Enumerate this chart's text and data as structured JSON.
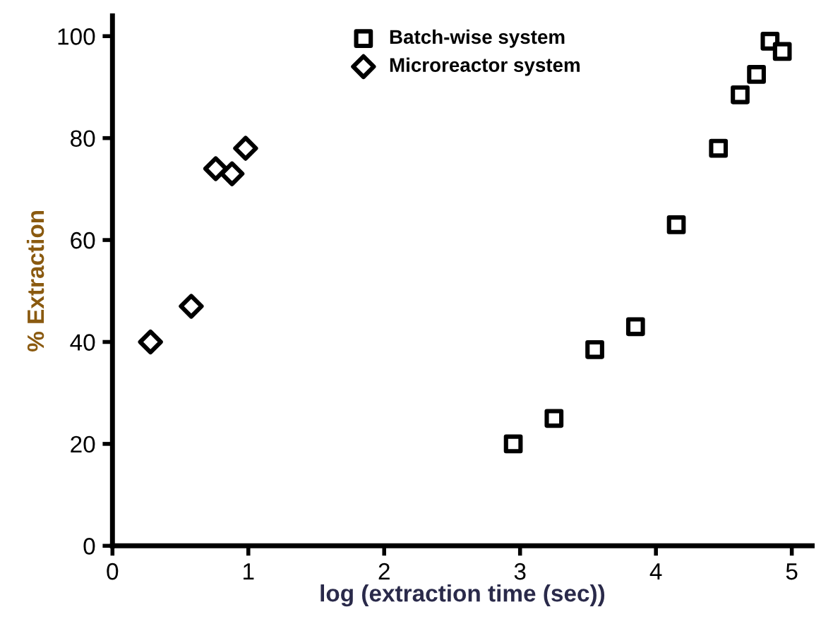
{
  "chart_data": {
    "type": "scatter",
    "xlabel": "log (extraction time (sec))",
    "ylabel": "% Extraction",
    "xlim": [
      0,
      5.15
    ],
    "ylim": [
      0,
      104
    ],
    "xticks": [
      0,
      1,
      2,
      3,
      4,
      5
    ],
    "yticks": [
      0,
      20,
      40,
      60,
      80,
      100
    ],
    "legend": "top",
    "grid": false,
    "series": [
      {
        "name": "Batch-wise system",
        "color": "#000000",
        "marker": "square",
        "x": [
          2.95,
          3.25,
          3.55,
          3.85,
          4.15,
          4.46,
          4.62,
          4.74,
          4.84,
          4.93
        ],
        "values": [
          20,
          25,
          38.5,
          43,
          63,
          78,
          88.5,
          92.5,
          99,
          97
        ]
      },
      {
        "name": "Microreactor system",
        "color": "#000000",
        "marker": "diamond",
        "x": [
          0.28,
          0.58,
          0.76,
          0.88,
          0.98
        ],
        "values": [
          40,
          47,
          74,
          73,
          78
        ]
      }
    ]
  }
}
